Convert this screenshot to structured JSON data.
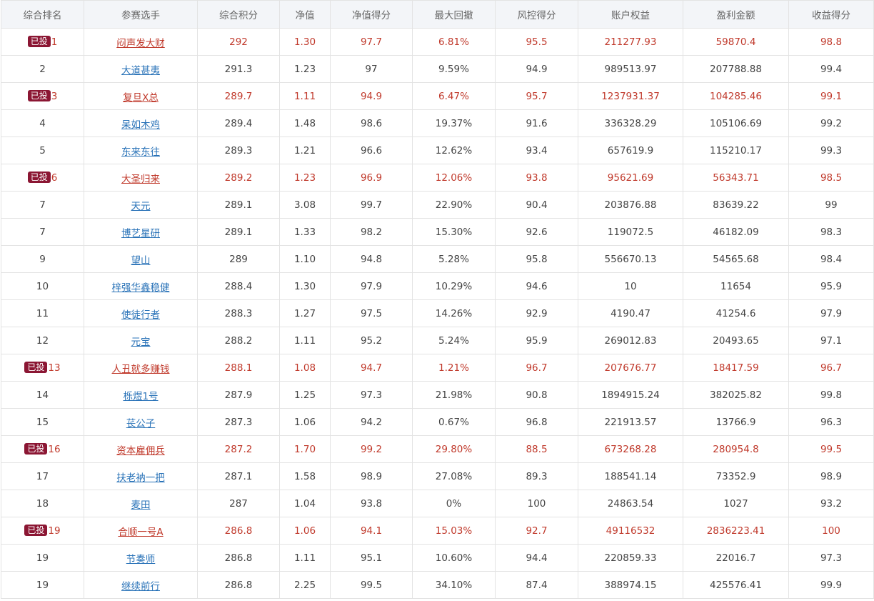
{
  "headers": [
    "综合排名",
    "参赛选手",
    "综合积分",
    "净值",
    "净值得分",
    "最大回撤",
    "风控得分",
    "账户权益",
    "盈利金额",
    "收益得分"
  ],
  "badge_label": "已投",
  "accent_colors": {
    "invested_text": "#c0392b",
    "badge_bg": "#8b1633",
    "link": "#2a73b8"
  },
  "rows": [
    {
      "rank": "1",
      "invested": true,
      "name": "闷声发大财",
      "score": "292",
      "nav": "1.30",
      "nav_score": "97.7",
      "drawdown": "6.81%",
      "risk_score": "95.5",
      "equity": "211277.93",
      "profit": "59870.4",
      "return_score": "98.8"
    },
    {
      "rank": "2",
      "invested": false,
      "name": "大道甚夷",
      "score": "291.3",
      "nav": "1.23",
      "nav_score": "97",
      "drawdown": "9.59%",
      "risk_score": "94.9",
      "equity": "989513.97",
      "profit": "207788.88",
      "return_score": "99.4"
    },
    {
      "rank": "3",
      "invested": true,
      "name": "复旦X总",
      "score": "289.7",
      "nav": "1.11",
      "nav_score": "94.9",
      "drawdown": "6.47%",
      "risk_score": "95.7",
      "equity": "1237931.37",
      "profit": "104285.46",
      "return_score": "99.1"
    },
    {
      "rank": "4",
      "invested": false,
      "name": "呆如木鸡",
      "score": "289.4",
      "nav": "1.48",
      "nav_score": "98.6",
      "drawdown": "19.37%",
      "risk_score": "91.6",
      "equity": "336328.29",
      "profit": "105106.69",
      "return_score": "99.2"
    },
    {
      "rank": "5",
      "invested": false,
      "name": "东来东往",
      "score": "289.3",
      "nav": "1.21",
      "nav_score": "96.6",
      "drawdown": "12.62%",
      "risk_score": "93.4",
      "equity": "657619.9",
      "profit": "115210.17",
      "return_score": "99.3"
    },
    {
      "rank": "6",
      "invested": true,
      "name": "大圣归来",
      "score": "289.2",
      "nav": "1.23",
      "nav_score": "96.9",
      "drawdown": "12.06%",
      "risk_score": "93.8",
      "equity": "95621.69",
      "profit": "56343.71",
      "return_score": "98.5"
    },
    {
      "rank": "7",
      "invested": false,
      "name": "天元",
      "score": "289.1",
      "nav": "3.08",
      "nav_score": "99.7",
      "drawdown": "22.90%",
      "risk_score": "90.4",
      "equity": "203876.88",
      "profit": "83639.22",
      "return_score": "99"
    },
    {
      "rank": "7",
      "invested": false,
      "name": "博艺星研",
      "score": "289.1",
      "nav": "1.33",
      "nav_score": "98.2",
      "drawdown": "15.30%",
      "risk_score": "92.6",
      "equity": "119072.5",
      "profit": "46182.09",
      "return_score": "98.3"
    },
    {
      "rank": "9",
      "invested": false,
      "name": "望山",
      "score": "289",
      "nav": "1.10",
      "nav_score": "94.8",
      "drawdown": "5.28%",
      "risk_score": "95.8",
      "equity": "556670.13",
      "profit": "54565.68",
      "return_score": "98.4"
    },
    {
      "rank": "10",
      "invested": false,
      "name": "梓强华鑫稳健",
      "score": "288.4",
      "nav": "1.30",
      "nav_score": "97.9",
      "drawdown": "10.29%",
      "risk_score": "94.6",
      "equity": "10",
      "profit": "11654",
      "return_score": "95.9"
    },
    {
      "rank": "11",
      "invested": false,
      "name": "使徒行者",
      "score": "288.3",
      "nav": "1.27",
      "nav_score": "97.5",
      "drawdown": "14.26%",
      "risk_score": "92.9",
      "equity": "4190.47",
      "profit": "41254.6",
      "return_score": "97.9"
    },
    {
      "rank": "12",
      "invested": false,
      "name": "元宝",
      "score": "288.2",
      "nav": "1.11",
      "nav_score": "95.2",
      "drawdown": "5.24%",
      "risk_score": "95.9",
      "equity": "269012.83",
      "profit": "20493.65",
      "return_score": "97.1"
    },
    {
      "rank": "13",
      "invested": true,
      "name": "人丑就多赚钱",
      "score": "288.1",
      "nav": "1.08",
      "nav_score": "94.7",
      "drawdown": "1.21%",
      "risk_score": "96.7",
      "equity": "207676.77",
      "profit": "18417.59",
      "return_score": "96.7"
    },
    {
      "rank": "14",
      "invested": false,
      "name": "栎煜1号",
      "score": "287.9",
      "nav": "1.25",
      "nav_score": "97.3",
      "drawdown": "21.98%",
      "risk_score": "90.8",
      "equity": "1894915.24",
      "profit": "382025.82",
      "return_score": "99.8"
    },
    {
      "rank": "15",
      "invested": false,
      "name": "苌公子",
      "score": "287.3",
      "nav": "1.06",
      "nav_score": "94.2",
      "drawdown": "0.67%",
      "risk_score": "96.8",
      "equity": "221913.57",
      "profit": "13766.9",
      "return_score": "96.3"
    },
    {
      "rank": "16",
      "invested": true,
      "name": "资本雇佣兵",
      "score": "287.2",
      "nav": "1.70",
      "nav_score": "99.2",
      "drawdown": "29.80%",
      "risk_score": "88.5",
      "equity": "673268.28",
      "profit": "280954.8",
      "return_score": "99.5"
    },
    {
      "rank": "17",
      "invested": false,
      "name": "扶老衲一把",
      "score": "287.1",
      "nav": "1.58",
      "nav_score": "98.9",
      "drawdown": "27.08%",
      "risk_score": "89.3",
      "equity": "188541.14",
      "profit": "73352.9",
      "return_score": "98.9"
    },
    {
      "rank": "18",
      "invested": false,
      "name": "麦田",
      "score": "287",
      "nav": "1.04",
      "nav_score": "93.8",
      "drawdown": "0%",
      "risk_score": "100",
      "equity": "24863.54",
      "profit": "1027",
      "return_score": "93.2"
    },
    {
      "rank": "19",
      "invested": true,
      "name": "合顺一号A",
      "score": "286.8",
      "nav": "1.06",
      "nav_score": "94.1",
      "drawdown": "15.03%",
      "risk_score": "92.7",
      "equity": "49116532",
      "profit": "2836223.41",
      "return_score": "100"
    },
    {
      "rank": "19",
      "invested": false,
      "name": "节奏师",
      "score": "286.8",
      "nav": "1.11",
      "nav_score": "95.1",
      "drawdown": "10.60%",
      "risk_score": "94.4",
      "equity": "220859.33",
      "profit": "22016.7",
      "return_score": "97.3"
    },
    {
      "rank": "19",
      "invested": false,
      "name": "继续前行",
      "score": "286.8",
      "nav": "2.25",
      "nav_score": "99.5",
      "drawdown": "34.10%",
      "risk_score": "87.4",
      "equity": "388974.15",
      "profit": "425576.41",
      "return_score": "99.9"
    }
  ]
}
